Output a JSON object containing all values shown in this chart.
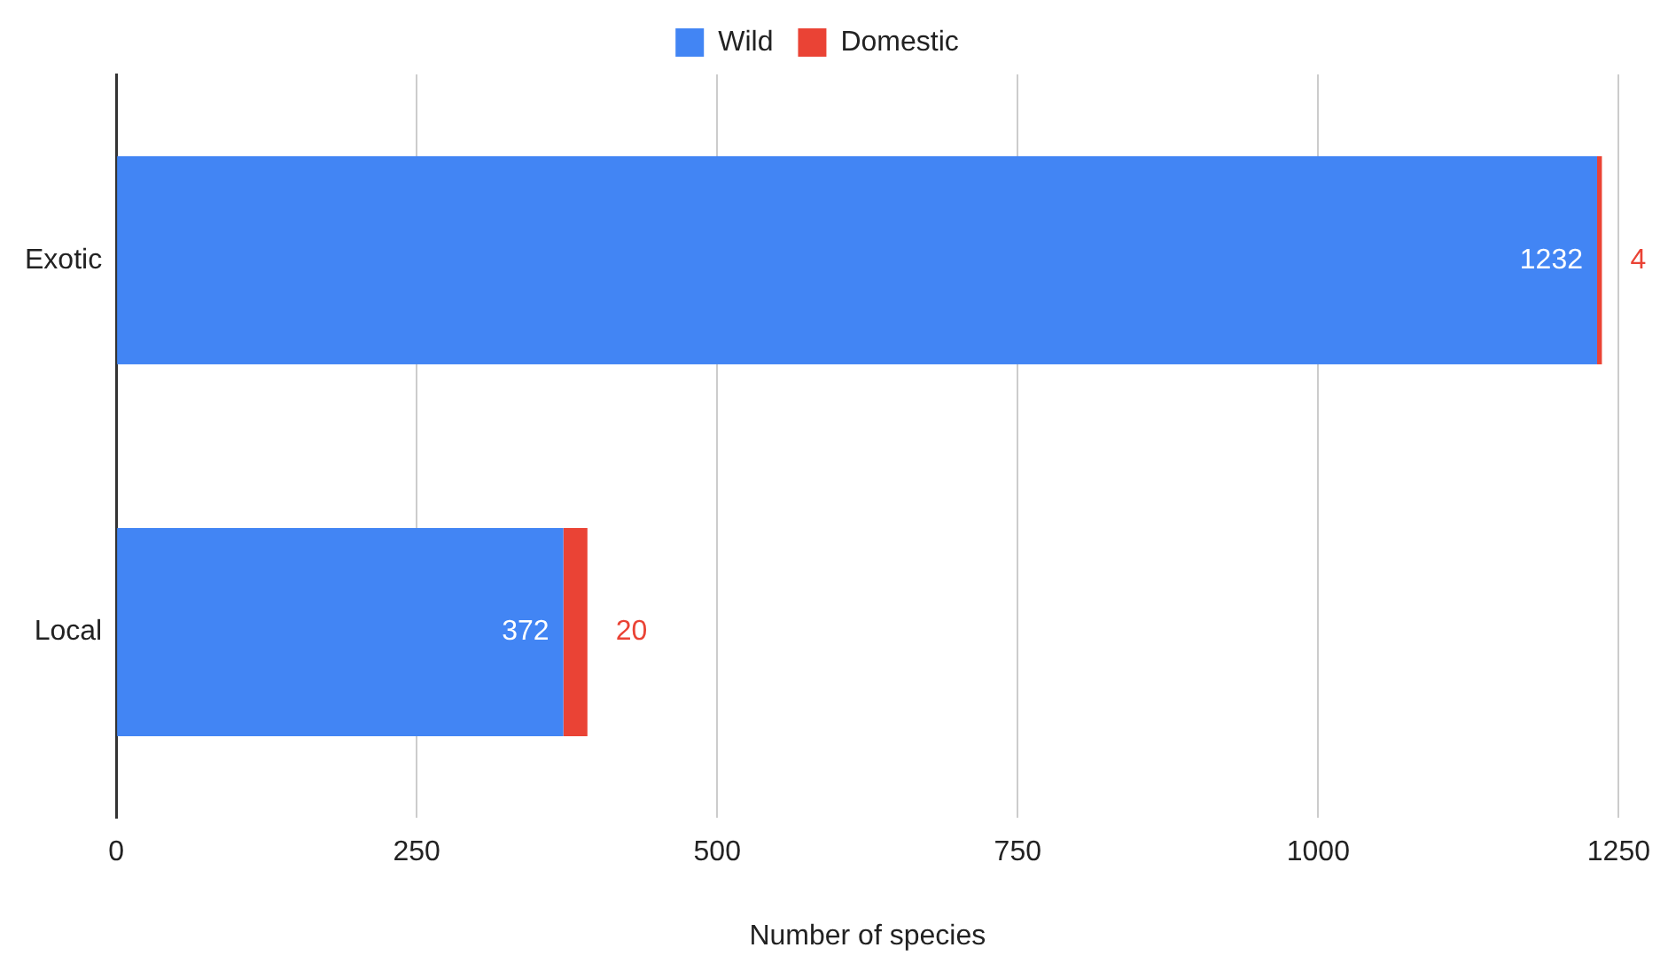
{
  "chart_data": {
    "type": "bar",
    "orientation": "horizontal",
    "stacked": true,
    "xlabel": "Number of species",
    "categories": [
      "Exotic",
      "Local"
    ],
    "series": [
      {
        "name": "Wild",
        "color": "#4285f4",
        "values": [
          1232,
          372
        ]
      },
      {
        "name": "Domestic",
        "color": "#ea4335",
        "values": [
          4,
          20
        ]
      }
    ],
    "xlim": [
      0,
      1250
    ],
    "xticks": [
      0,
      250,
      500,
      750,
      1000,
      1250
    ],
    "grid": "x",
    "legend": "top",
    "data_labels": true
  }
}
